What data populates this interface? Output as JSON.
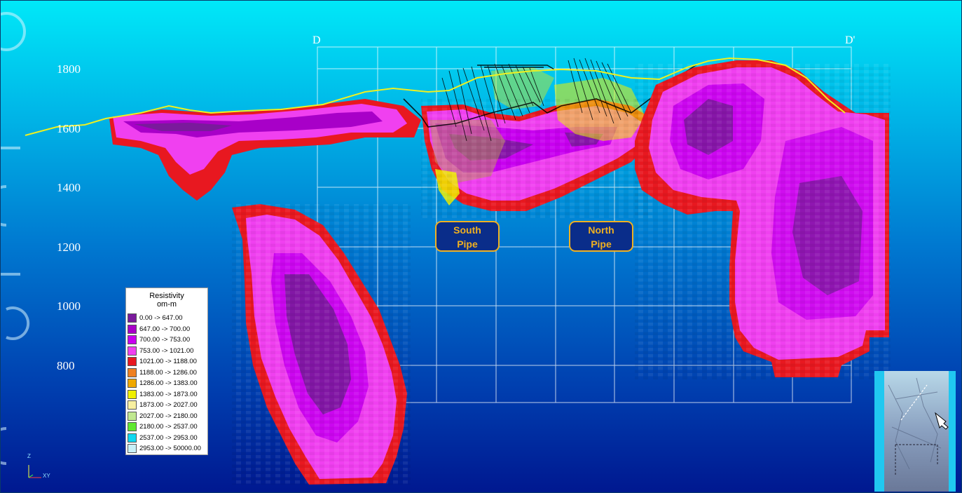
{
  "section": {
    "start_label": "D",
    "end_label": "D'"
  },
  "elevation_labels": [
    "1800",
    "1600",
    "1400",
    "1200",
    "1000",
    "800"
  ],
  "annotations": [
    {
      "line1": "South",
      "line2": "Pipe"
    },
    {
      "line1": "North",
      "line2": "Pipe"
    }
  ],
  "legend": {
    "title": "Resistivity",
    "subtitle": "om-m",
    "items": [
      {
        "label": "0.00 -> 647.00",
        "color": "#7a1a9c"
      },
      {
        "label": "647.00 -> 700.00",
        "color": "#a800c8"
      },
      {
        "label": "700.00 -> 753.00",
        "color": "#c800f0"
      },
      {
        "label": "753.00 -> 1021.00",
        "color": "#f040f0"
      },
      {
        "label": "1021.00 -> 1188.00",
        "color": "#e81820"
      },
      {
        "label": "1188.00 -> 1286.00",
        "color": "#f08020"
      },
      {
        "label": "1286.00 -> 1383.00",
        "color": "#f0a800"
      },
      {
        "label": "1383.00 -> 1873.00",
        "color": "#f0f000"
      },
      {
        "label": "1873.00 -> 2027.00",
        "color": "#f8f0a0"
      },
      {
        "label": "2027.00 -> 2180.00",
        "color": "#c0e890"
      },
      {
        "label": "2180.00 -> 2537.00",
        "color": "#60e830"
      },
      {
        "label": "2537.00 -> 2953.00",
        "color": "#10d8f0"
      },
      {
        "label": "2953.00 -> 50000.00",
        "color": "#c8f0f8"
      }
    ]
  },
  "axis_triad": {
    "z_label": "Z",
    "xy_label": "XY"
  }
}
